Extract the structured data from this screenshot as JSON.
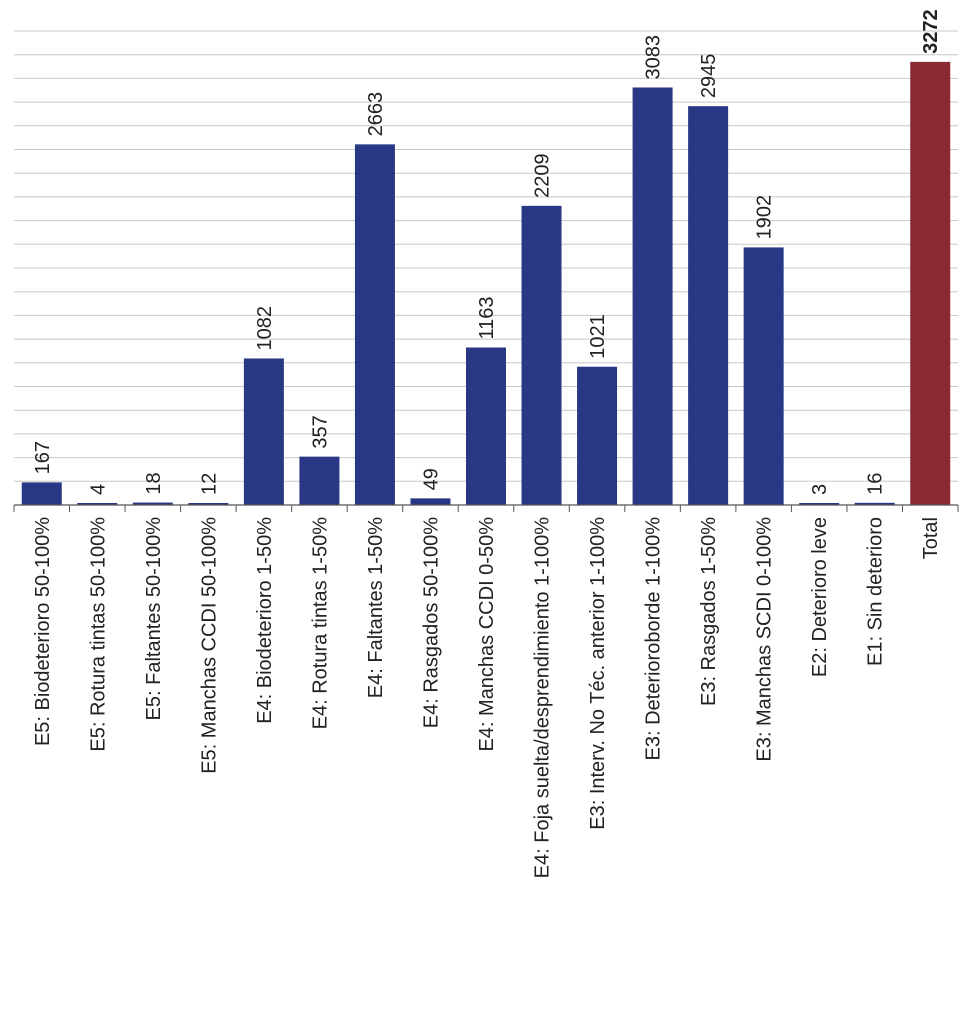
{
  "chart_data": {
    "type": "bar",
    "title": "",
    "xlabel": "",
    "ylabel": "",
    "ylim": [
      0,
      3500
    ],
    "grid": true,
    "grid_step": 175,
    "categories": [
      "E5: Biodeterioro 50-100%",
      "E5: Rotura tintas 50-100%",
      "E5: Faltantes 50-100%",
      "E5: Manchas CCDI 50-100%",
      "E4: Biodeterioro 1-50%",
      "E4: Rotura tintas 1-50%",
      "E4: Faltantes 1-50%",
      "E4: Rasgados 50-100%",
      "E4: Manchas CCDI 0-50%",
      "E4: Foja suelta/desprendimiento 1-100%",
      "E3: Interv. No Téc. anterior 1-100%",
      "E3: Deterioroborde 1-100%",
      "E3: Rasgados 1-50%",
      "E3: Manchas SCDI 0-100%",
      "E2: Deterioro leve",
      "E1: Sin deterioro",
      "Total"
    ],
    "values": [
      167,
      4,
      18,
      12,
      1082,
      357,
      2663,
      49,
      1163,
      2209,
      1021,
      3083,
      2945,
      1902,
      3,
      16,
      3272
    ],
    "colors": {
      "bar": "#283885",
      "total": "#8b2a33"
    }
  }
}
